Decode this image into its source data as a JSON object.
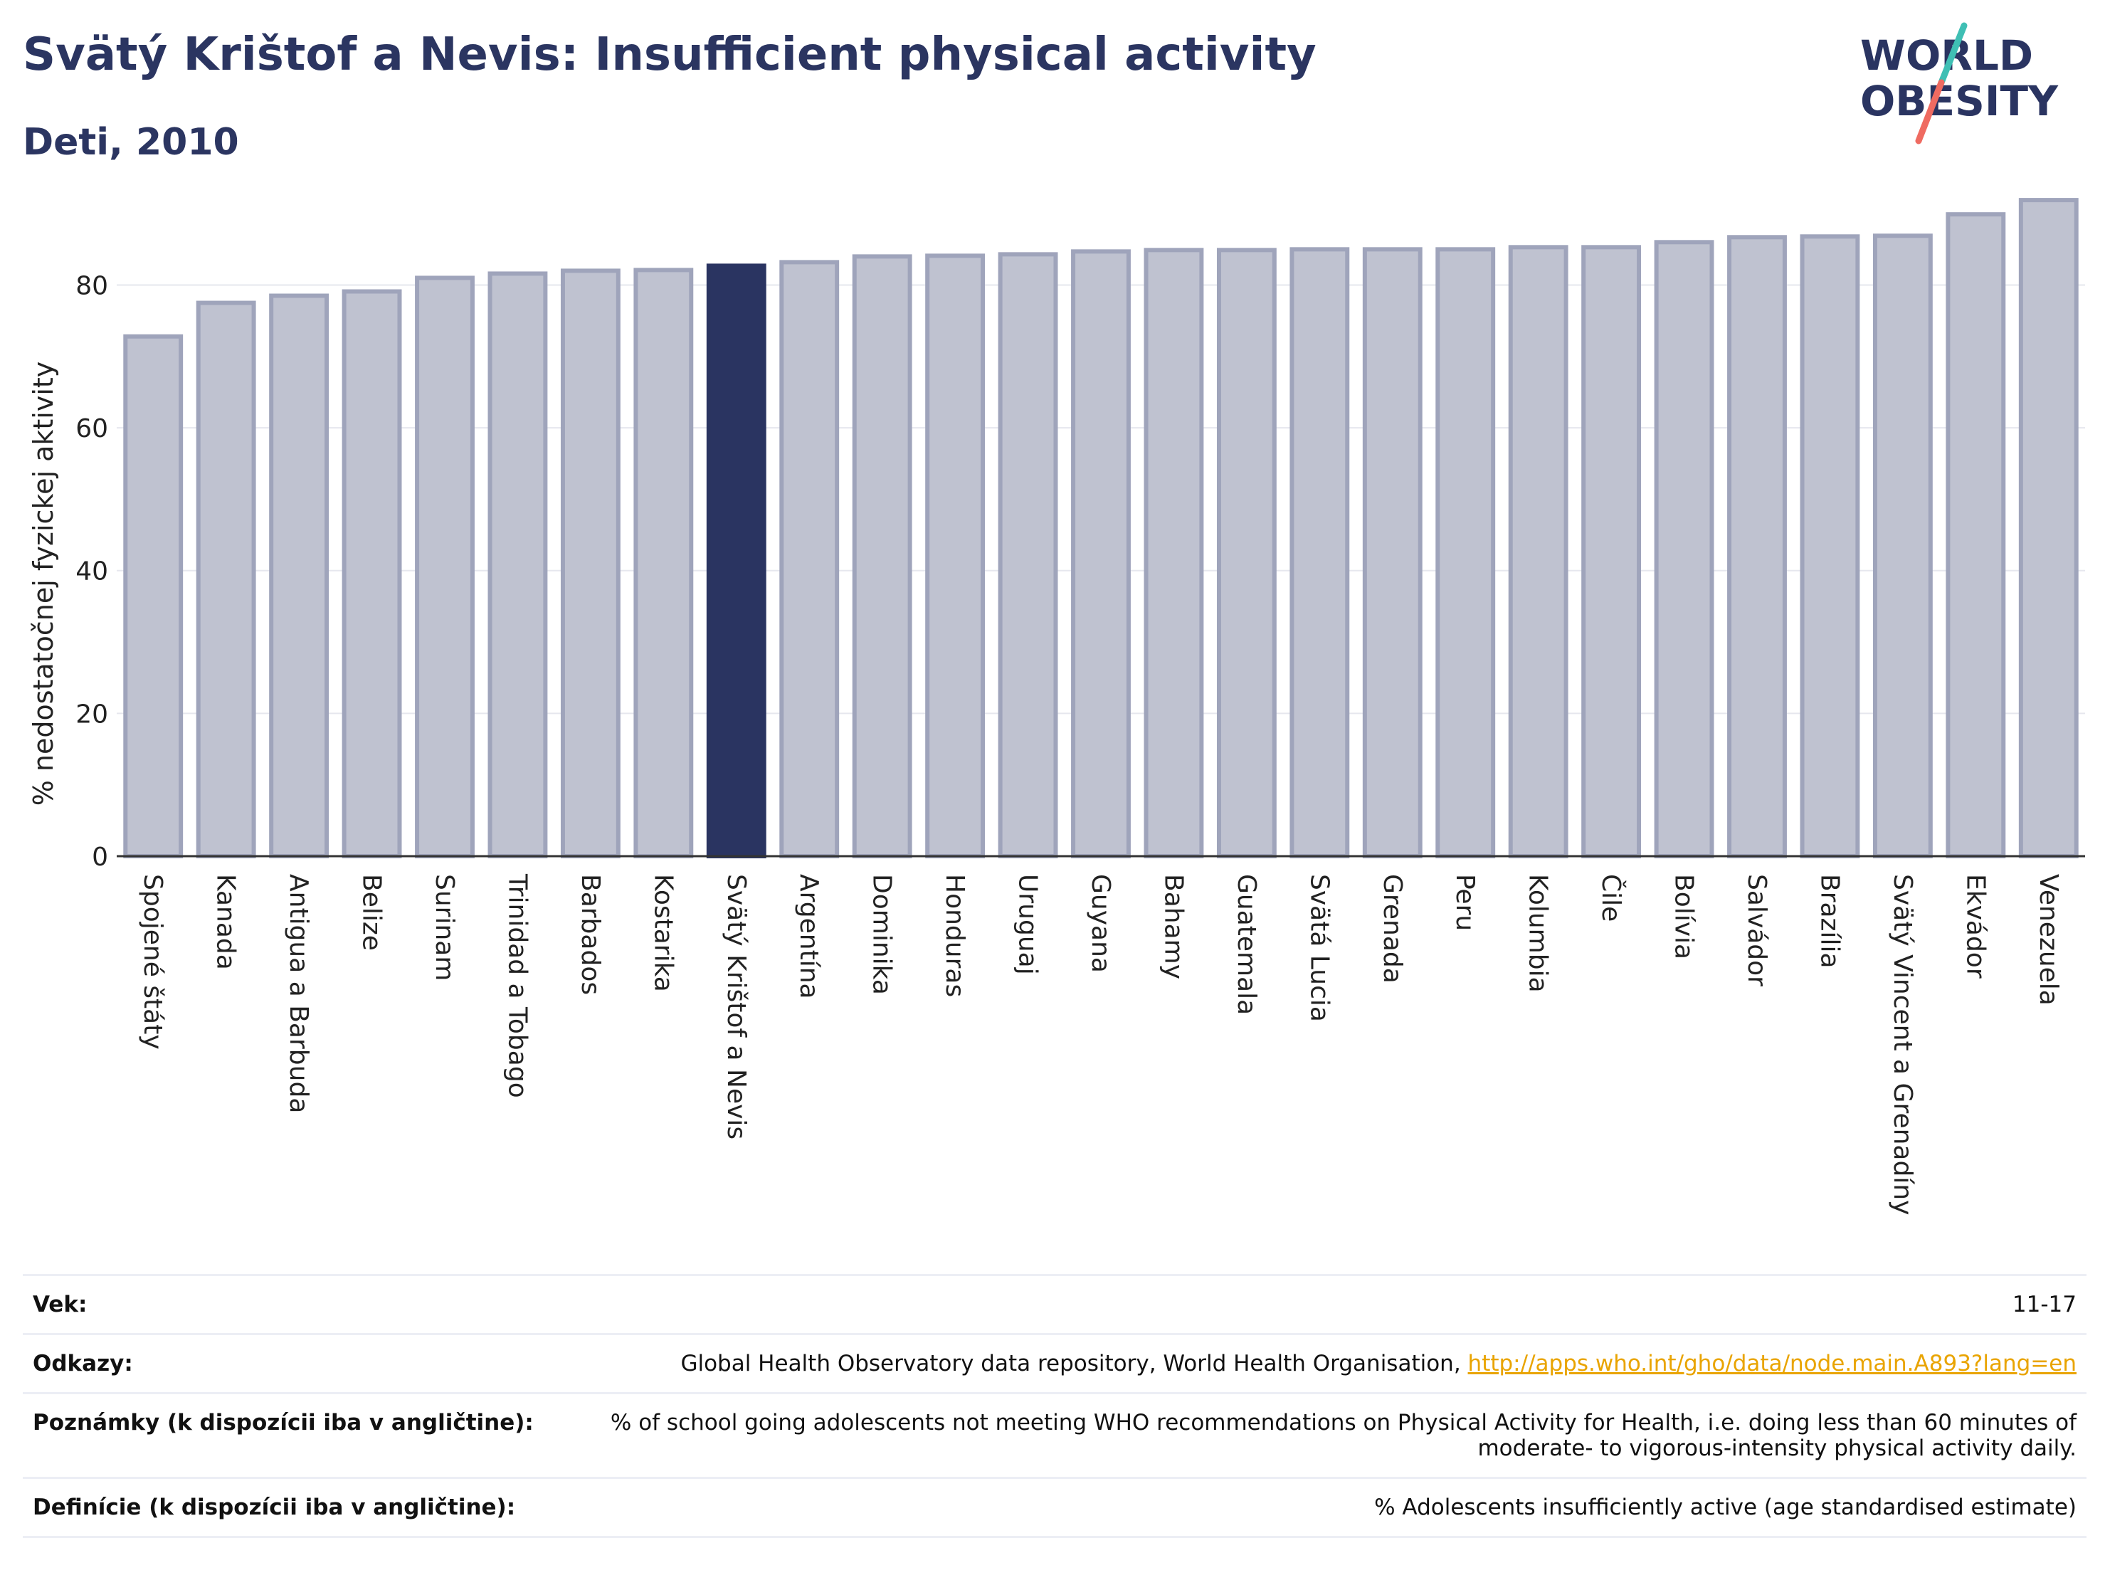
{
  "header": {
    "title": "Svätý Krištof a Nevis: Insufficient physical activity",
    "subtitle": "Deti, 2010"
  },
  "logo": {
    "line1": "WORLD",
    "line2": "OBESITY"
  },
  "colors": {
    "bar": "#bfc2d0",
    "bar_stroke": "#9fa4bb",
    "highlight": "#2a3461",
    "text": "#2b3561",
    "grid": "#e6e7ee",
    "logo_teal": "#3fbfb4",
    "logo_coral": "#ef6b61"
  },
  "chart_data": {
    "type": "bar",
    "title": "Svätý Krištof a Nevis: Insufficient physical activity",
    "subtitle": "Deti, 2010",
    "xlabel": "",
    "ylabel": "% nedostatočnej fyzickej aktivity",
    "ylim": [
      0,
      95
    ],
    "yticks": [
      0,
      20,
      40,
      60,
      80
    ],
    "grid": true,
    "highlight": "Svätý Krištof a Nevis",
    "categories": [
      "Spojené štáty",
      "Kanada",
      "Antigua a Barbuda",
      "Belize",
      "Surinam",
      "Trinidad a Tobago",
      "Barbados",
      "Kostarika",
      "Svätý Krištof a Nevis",
      "Argentína",
      "Dominika",
      "Honduras",
      "Uruguaj",
      "Guyana",
      "Bahamy",
      "Guatemala",
      "Svätá Lucia",
      "Grenada",
      "Peru",
      "Kolumbia",
      "Čile",
      "Bolívia",
      "Salvádor",
      "Brazília",
      "Svätý Vincent a Grenadíny",
      "Ekvádor",
      "Venezuela"
    ],
    "values": [
      72.8,
      77.5,
      78.5,
      79.1,
      81.0,
      81.6,
      82.0,
      82.1,
      82.7,
      83.2,
      84.0,
      84.1,
      84.3,
      84.7,
      84.9,
      84.9,
      85.0,
      85.0,
      85.0,
      85.3,
      85.3,
      86.0,
      86.7,
      86.8,
      86.9,
      89.9,
      91.9
    ]
  },
  "meta": {
    "rows": [
      {
        "label": "Vek:",
        "value": "11-17"
      },
      {
        "label": "Odkazy:",
        "value": "Global Health Observatory data repository, World Health Organisation, ",
        "link": "http://apps.who.int/gho/data/node.main.A893?lang=en"
      },
      {
        "label": "Poznámky (k dispozícii iba v angličtine):",
        "value": "% of school going adolescents not meeting WHO recommendations on Physical Activity for Health, i.e. doing less than 60 minutes of moderate- to vigorous-intensity physical activity daily."
      },
      {
        "label": "Definície (k dispozícii iba v angličtine):",
        "value": "% Adolescents insufficiently active (age standardised estimate)"
      }
    ]
  }
}
